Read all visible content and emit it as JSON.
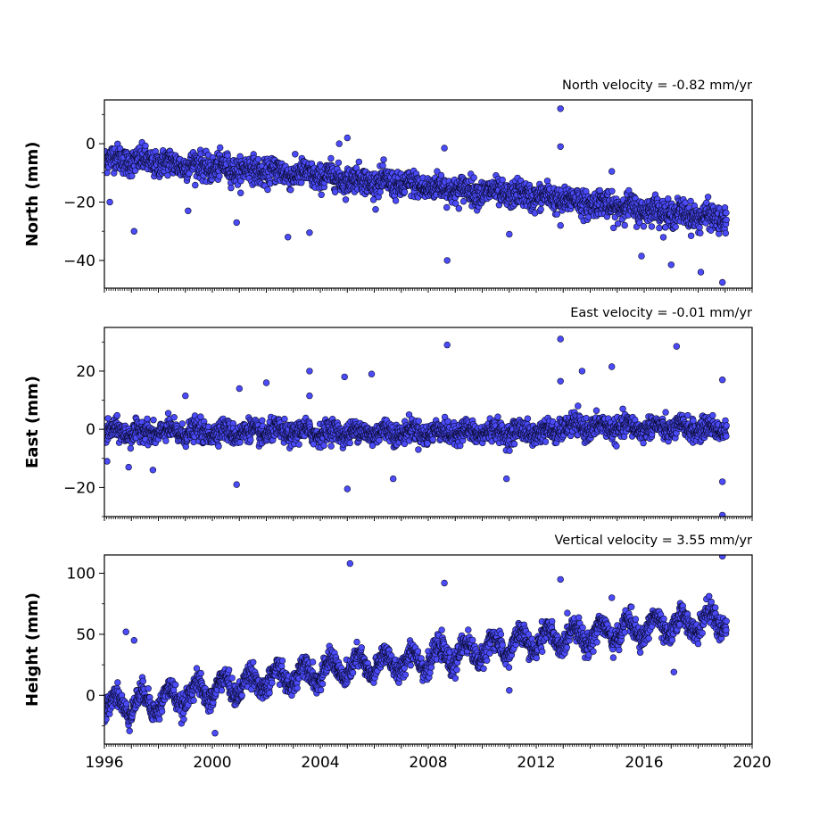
{
  "chart_data": [
    {
      "type": "scatter",
      "title": "North velocity = -0.82 mm/yr",
      "ylabel": "North (mm)",
      "xlim": [
        1996,
        2020
      ],
      "ylim": [
        -49.5,
        15
      ],
      "yticks": [
        0,
        -20,
        -40
      ],
      "ytick_labels": [
        "0",
        "−20",
        "−40"
      ],
      "velocity_mm_per_yr": -0.82,
      "series": [
        {
          "trend": [
            [
              1996.0,
              -5
            ],
            [
              2004.0,
              -11
            ],
            [
              2007.0,
              -14
            ],
            [
              2012.0,
              -18
            ],
            [
              2019.0,
              -26
            ]
          ],
          "noise_mm": 2.2,
          "seasonal_amp_mm": 1.0,
          "outliers": [
            [
              1996.2,
              -20
            ],
            [
              1997.1,
              -30
            ],
            [
              1999.1,
              -23
            ],
            [
              2000.9,
              -27
            ],
            [
              2002.8,
              -32
            ],
            [
              2003.6,
              -30.5
            ],
            [
              2005.0,
              2
            ],
            [
              2004.7,
              0
            ],
            [
              2008.7,
              -40
            ],
            [
              2008.6,
              -1.5
            ],
            [
              2011.0,
              -31
            ],
            [
              2012.9,
              12
            ],
            [
              2012.9,
              -1
            ],
            [
              2014.8,
              -9.5
            ],
            [
              2015.9,
              -38.5
            ],
            [
              2017.0,
              -41.5
            ],
            [
              2018.1,
              -44
            ],
            [
              2018.9,
              -47.5
            ],
            [
              2012.9,
              -28
            ]
          ]
        }
      ]
    },
    {
      "type": "scatter",
      "title": "East velocity = -0.01 mm/yr",
      "ylabel": "East (mm)",
      "xlim": [
        1996,
        2020
      ],
      "ylim": [
        -30,
        35
      ],
      "yticks": [
        20,
        0,
        -20
      ],
      "ytick_labels": [
        "20",
        "0",
        "−20"
      ],
      "velocity_mm_per_yr": -0.01,
      "series": [
        {
          "trend": [
            [
              1996.0,
              -1
            ],
            [
              2012.8,
              -1
            ],
            [
              2012.9,
              1
            ],
            [
              2019.0,
              0
            ]
          ],
          "noise_mm": 1.8,
          "seasonal_amp_mm": 1.2,
          "outliers": [
            [
              1996.1,
              -11
            ],
            [
              1996.9,
              -13
            ],
            [
              1997.8,
              -14
            ],
            [
              1999.0,
              11.5
            ],
            [
              2000.9,
              -19
            ],
            [
              2001.0,
              14
            ],
            [
              2002.0,
              16
            ],
            [
              2003.6,
              20
            ],
            [
              2003.6,
              11.5
            ],
            [
              2004.9,
              18
            ],
            [
              2005.0,
              -20.5
            ],
            [
              2005.9,
              19
            ],
            [
              2006.7,
              -17
            ],
            [
              2008.7,
              29
            ],
            [
              2010.9,
              -17
            ],
            [
              2012.9,
              31
            ],
            [
              2012.9,
              16.5
            ],
            [
              2013.7,
              20
            ],
            [
              2014.8,
              21.5
            ],
            [
              2017.2,
              28.5
            ],
            [
              2018.9,
              -29.5
            ],
            [
              2018.9,
              17
            ],
            [
              2018.9,
              -18
            ]
          ]
        }
      ]
    },
    {
      "type": "scatter",
      "title": "Vertical velocity = 3.55 mm/yr",
      "ylabel": "Height (mm)",
      "xlabel": "",
      "xlim": [
        1996,
        2020
      ],
      "ylim": [
        -40,
        115
      ],
      "yticks": [
        100,
        50,
        0
      ],
      "ytick_labels": [
        "100",
        "50",
        "0"
      ],
      "xticks": [
        1996,
        2000,
        2004,
        2008,
        2012,
        2016,
        2020
      ],
      "xtick_labels": [
        "1996",
        "2000",
        "2004",
        "2008",
        "2012",
        "2016",
        "2020"
      ],
      "velocity_mm_per_yr": 3.55,
      "series": [
        {
          "trend": [
            [
              1996.0,
              -8
            ],
            [
              1998.0,
              -5
            ],
            [
              2000.0,
              5
            ],
            [
              2004.0,
              20
            ],
            [
              2008.0,
              30
            ],
            [
              2012.0,
              45
            ],
            [
              2016.0,
              55
            ],
            [
              2019.0,
              62
            ]
          ],
          "noise_mm": 4.5,
          "seasonal_amp_mm": 9,
          "outliers": [
            [
              2005.1,
              108
            ],
            [
              2008.6,
              92
            ],
            [
              2012.9,
              95
            ],
            [
              2018.9,
              114
            ],
            [
              1996.8,
              52
            ],
            [
              1997.1,
              45
            ],
            [
              2000.1,
              -31
            ],
            [
              2011.0,
              4
            ],
            [
              2017.1,
              19
            ],
            [
              2014.8,
              80
            ]
          ]
        }
      ]
    }
  ],
  "colors": {
    "marker_fill": "#4b4bfa",
    "marker_edge": "#0b0b30",
    "axes": "#000000",
    "background": "#ffffff"
  }
}
